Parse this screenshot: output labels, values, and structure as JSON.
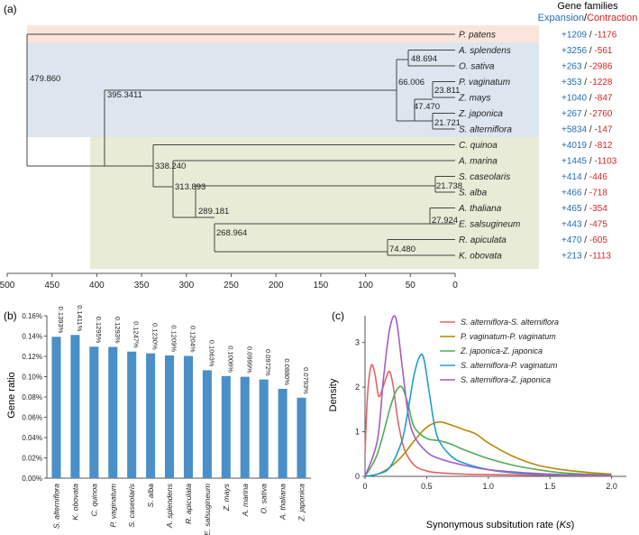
{
  "colors": {
    "expansion": "#1f6fb4",
    "contraction": "#d42424",
    "band_top": "#fae5dc",
    "band_mid": "#dde6ee",
    "band_bot": "#e8ecd6",
    "bar": "#4a8fc8",
    "axis": "#555555"
  },
  "panel_a": {
    "label": "(a)",
    "legend_title": "Gene families",
    "legend_expansion": "Expansion",
    "legend_slash": "/",
    "legend_contraction": "Contraction",
    "axis_ticks": [
      "500",
      "450",
      "400",
      "350",
      "300",
      "250",
      "200",
      "150",
      "100",
      "50",
      "0"
    ],
    "species": [
      {
        "name": "P. patens",
        "expansion": "+1209",
        "contraction": "-1176"
      },
      {
        "name": "A. splendens",
        "expansion": "+3256",
        "contraction": "-561"
      },
      {
        "name": "O. sativa",
        "expansion": "+263",
        "contraction": "-2986"
      },
      {
        "name": "P. vaginatum",
        "expansion": "+353",
        "contraction": "-1228"
      },
      {
        "name": "Z. mays",
        "expansion": "+1040",
        "contraction": "-847"
      },
      {
        "name": "Z. japonica",
        "expansion": "+267",
        "contraction": "-2760"
      },
      {
        "name": "S. alterniflora",
        "expansion": "+5834",
        "contraction": "-147"
      },
      {
        "name": "C. quinoa",
        "expansion": "+4019",
        "contraction": "-812"
      },
      {
        "name": "A. marina",
        "expansion": "+1445",
        "contraction": "-1103"
      },
      {
        "name": "S. caseolaris",
        "expansion": "+414",
        "contraction": "-446"
      },
      {
        "name": "S. alba",
        "expansion": "+466",
        "contraction": "-718"
      },
      {
        "name": "A. thaliana",
        "expansion": "+465",
        "contraction": "-354"
      },
      {
        "name": "E. salsugineum",
        "expansion": "+443",
        "contraction": "-475"
      },
      {
        "name": "R. apiculata",
        "expansion": "+470",
        "contraction": "-605"
      },
      {
        "name": "K. obovata",
        "expansion": "+213",
        "contraction": "-1113"
      }
    ],
    "node_labels": [
      "479.860",
      "395.3411",
      "48.694",
      "66.006",
      "23.811",
      "47.470",
      "21.721",
      "338.240",
      "313.893",
      "21.738",
      "289.181",
      "27.924",
      "268.964",
      "74.480"
    ]
  },
  "chart_data": [
    {
      "type": "bar",
      "panel": "(b)",
      "ylabel": "Gene ratio",
      "xlabel": "",
      "ylim": [
        0,
        0.16
      ],
      "yticks": [
        "0.00%",
        "0.02%",
        "0.04%",
        "0.06%",
        "0.08%",
        "0.10%",
        "0.12%",
        "0.14%",
        "0.16%"
      ],
      "categories": [
        "S. alterniflora",
        "K. obovata",
        "C. quinoa",
        "P. vaginatum",
        "S. caseolaris",
        "S. alba",
        "A. splendens",
        "R. apiculata",
        "E. salsugineum",
        "Z. mays",
        "A. marina",
        "O. sativa",
        "A. thaliana",
        "Z. japonica"
      ],
      "values": [
        0.1393,
        0.1411,
        0.1295,
        0.1293,
        0.1247,
        0.123,
        0.1209,
        0.1204,
        0.1063,
        0.1006,
        0.0999,
        0.0972,
        0.088,
        0.0793
      ],
      "data_labels": [
        "0.1393%",
        "0.1411%",
        "0.1295%",
        "0.1293%",
        "0.1247%",
        "0.1230%",
        "0.1209%",
        "0.1204%",
        "0.1063%",
        "0.1006%",
        "0.0999%",
        "0.0972%",
        "0.0880%",
        "0.0793%"
      ]
    },
    {
      "type": "line",
      "panel": "(c)",
      "xlabel_pre": "Synonymous subsitution rate (",
      "xlabel_var": "Ks",
      "xlabel_post": ")",
      "ylabel": "Density",
      "xlim": [
        0,
        2.0
      ],
      "ylim": [
        0,
        3.6
      ],
      "xticks": [
        "0",
        "0.5",
        "1.0",
        "1.5",
        "2.0"
      ],
      "yticks": [
        "0",
        "1",
        "2",
        "3"
      ],
      "series": [
        {
          "name": "S. alterniflora-S. alterniflora",
          "color": "#e06666",
          "x": [
            0.0,
            0.02,
            0.05,
            0.08,
            0.11,
            0.14,
            0.17,
            0.2,
            0.23,
            0.27,
            0.32,
            0.4,
            0.5,
            0.6,
            0.8,
            1.0,
            1.3,
            1.6,
            2.0
          ],
          "y": [
            0.5,
            1.8,
            2.48,
            2.3,
            1.8,
            1.95,
            2.2,
            2.35,
            2.0,
            1.2,
            0.6,
            0.25,
            0.12,
            0.08,
            0.05,
            0.04,
            0.03,
            0.02,
            0.01
          ]
        },
        {
          "name": "P. vaginatum-P. vaginatum",
          "color": "#b8860b",
          "x": [
            0.0,
            0.1,
            0.2,
            0.3,
            0.4,
            0.5,
            0.6,
            0.7,
            0.8,
            0.9,
            1.0,
            1.2,
            1.4,
            1.6,
            1.8,
            2.0
          ],
          "y": [
            0.0,
            0.05,
            0.2,
            0.45,
            0.8,
            1.1,
            1.22,
            1.15,
            1.05,
            0.95,
            0.75,
            0.45,
            0.25,
            0.15,
            0.09,
            0.05
          ]
        },
        {
          "name": "Z. japonica-Z. japonica",
          "color": "#4caf50",
          "x": [
            0.0,
            0.1,
            0.2,
            0.25,
            0.3,
            0.35,
            0.4,
            0.5,
            0.6,
            0.7,
            0.8,
            1.0,
            1.2,
            1.4,
            1.6,
            1.8,
            2.0
          ],
          "y": [
            0.0,
            0.5,
            1.5,
            1.9,
            2.0,
            1.6,
            1.1,
            0.85,
            0.8,
            0.72,
            0.6,
            0.4,
            0.25,
            0.15,
            0.08,
            0.05,
            0.03
          ]
        },
        {
          "name": "S. alterniflora-P. vaginatum",
          "color": "#1e9fd0",
          "x": [
            0.0,
            0.1,
            0.2,
            0.3,
            0.35,
            0.4,
            0.45,
            0.48,
            0.52,
            0.56,
            0.6,
            0.7,
            0.8,
            1.0,
            1.2,
            1.5,
            2.0
          ],
          "y": [
            0.0,
            0.05,
            0.2,
            0.8,
            1.5,
            2.3,
            2.72,
            2.6,
            1.9,
            1.2,
            0.8,
            0.45,
            0.3,
            0.15,
            0.08,
            0.04,
            0.02
          ]
        },
        {
          "name": "S. alterniflora-Z. japonica",
          "color": "#a55cc4",
          "x": [
            0.0,
            0.1,
            0.15,
            0.2,
            0.25,
            0.3,
            0.35,
            0.4,
            0.5,
            0.6,
            0.8,
            1.0,
            1.3,
            1.6,
            2.0
          ],
          "y": [
            0.0,
            0.8,
            2.2,
            3.3,
            3.55,
            2.5,
            1.4,
            0.9,
            0.55,
            0.4,
            0.25,
            0.15,
            0.08,
            0.04,
            0.02
          ]
        }
      ]
    }
  ],
  "panel_b": {
    "label": "(b)"
  },
  "panel_c": {
    "label": "(c)"
  }
}
